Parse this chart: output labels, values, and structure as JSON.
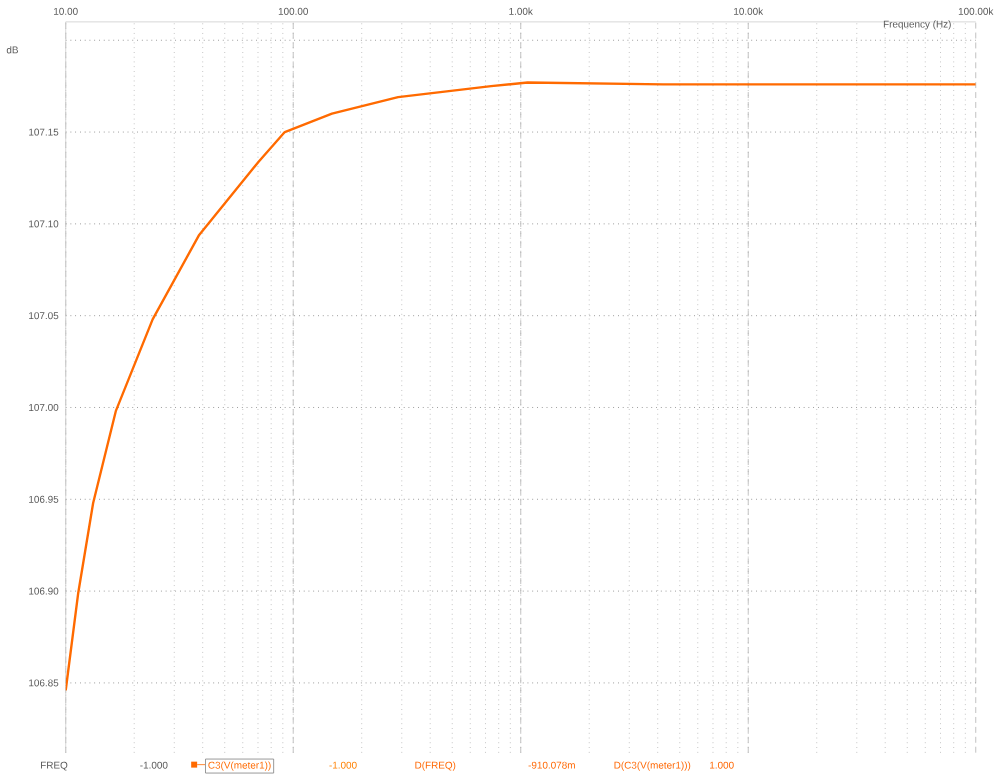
{
  "chart_data": {
    "type": "line",
    "xlabel": "Frequency (Hz)",
    "ylabel": "dB",
    "log": "x",
    "grid": true,
    "legend": "bottom",
    "xlim": [
      10,
      100000
    ],
    "ylim": [
      106.812,
      107.21
    ],
    "xticks": [
      {
        "value": 10,
        "label": "10.00"
      },
      {
        "value": 100,
        "label": "100.00"
      },
      {
        "value": 1000,
        "label": "1.00k"
      },
      {
        "value": 10000,
        "label": "10.00k"
      },
      {
        "value": 100000,
        "label": "100.00k"
      }
    ],
    "yticks": [
      {
        "value": 106.85,
        "label": "106.85"
      },
      {
        "value": 106.9,
        "label": "106.90"
      },
      {
        "value": 106.95,
        "label": "106.95"
      },
      {
        "value": 107.0,
        "label": "107.00"
      },
      {
        "value": 107.05,
        "label": "107.05"
      },
      {
        "value": 107.1,
        "label": "107.10"
      },
      {
        "value": 107.15,
        "label": "107.15"
      },
      {
        "value": 107.2,
        "label": null
      }
    ],
    "series": [
      {
        "name": "C3(V(meter1))",
        "color": "#ff6a00",
        "x": [
          10,
          11.35,
          13.2,
          16.6,
          24.1,
          38.6,
          70.6,
          91.8,
          148,
          289,
          741,
          1072,
          4230,
          100000
        ],
        "values": [
          106.846,
          106.899,
          106.948,
          106.998,
          107.048,
          107.094,
          107.134,
          107.15,
          107.16,
          107.169,
          107.175,
          107.177,
          107.176,
          107.176
        ]
      }
    ],
    "annotations": [
      "FREQ",
      "-1.000",
      "-1.000",
      "D(FREQ)",
      "-910.078m",
      "D(C3(V(meter1)))",
      "1.000"
    ]
  }
}
